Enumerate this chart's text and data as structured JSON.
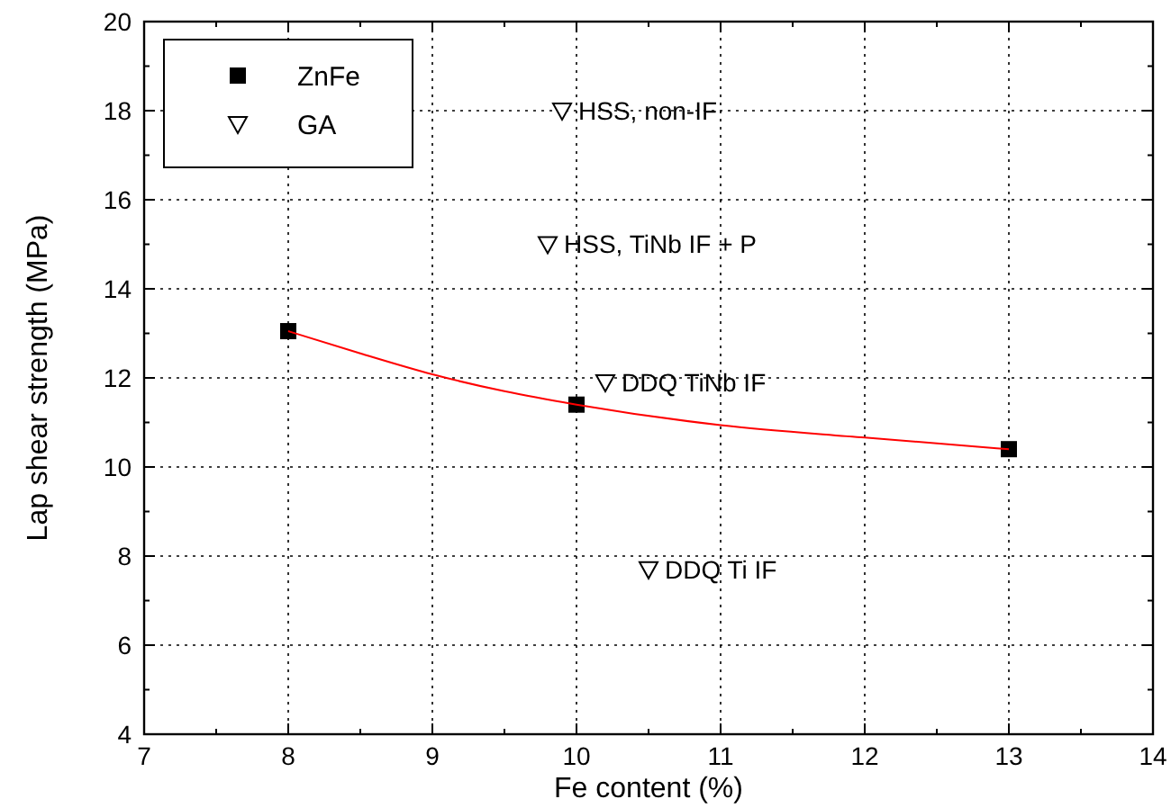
{
  "chart_data": {
    "type": "scatter",
    "xlabel": "Fe content   (%)",
    "ylabel": "Lap shear strength   (MPa)",
    "xlim": [
      7,
      14
    ],
    "ylim": [
      4,
      20
    ],
    "xticks": [
      7,
      {
        "value": 7.5,
        "label": null
      },
      8,
      {
        "value": 8.5,
        "label": null
      },
      9,
      {
        "value": 9.5,
        "label": null
      },
      10,
      {
        "value": 10.5,
        "label": null
      },
      11,
      {
        "value": 11.5,
        "label": null
      },
      12,
      {
        "value": 12.5,
        "label": null
      },
      13,
      {
        "value": 13.5,
        "label": null
      },
      14
    ],
    "yticks": [
      4,
      {
        "value": 5,
        "label": null
      },
      6,
      {
        "value": 7,
        "label": null
      },
      8,
      {
        "value": 9,
        "label": null
      },
      10,
      {
        "value": 11,
        "label": null
      },
      12,
      {
        "value": 13,
        "label": null
      },
      14,
      {
        "value": 15,
        "label": null
      },
      16,
      {
        "value": 17,
        "label": null
      },
      18,
      {
        "value": 19,
        "label": null
      },
      20
    ],
    "grid": true,
    "legend": "top left",
    "series": [
      {
        "name": "ZnFe",
        "color": "#000000",
        "marker": "square",
        "x": [
          8,
          10,
          13
        ],
        "values": [
          13.05,
          11.4,
          10.4
        ]
      },
      {
        "name": "GA",
        "color": "#000000",
        "marker": "triangle",
        "x": [
          9.9,
          9.8,
          10.2,
          10.5
        ],
        "values": [
          18,
          15,
          11.9,
          7.7
        ]
      },
      {
        "type": "line",
        "color": "#ff0000",
        "marker": "none",
        "x": [
          8,
          8.5,
          9,
          9.5,
          10,
          11,
          12,
          13
        ],
        "values": [
          13.05,
          12.55,
          12.08,
          11.7,
          11.4,
          10.94,
          10.66,
          10.4
        ]
      }
    ],
    "annotations": [
      {
        "text": "HSS, non-IF",
        "x": 9.9,
        "y": 18
      },
      {
        "text": "HSS, TiNb IF + P",
        "x": 9.8,
        "y": 15
      },
      {
        "text": "DDQ TiNb IF",
        "x": 10.2,
        "y": 11.9
      },
      {
        "text": "DDQ Ti IF",
        "x": 10.5,
        "y": 7.7
      }
    ]
  }
}
